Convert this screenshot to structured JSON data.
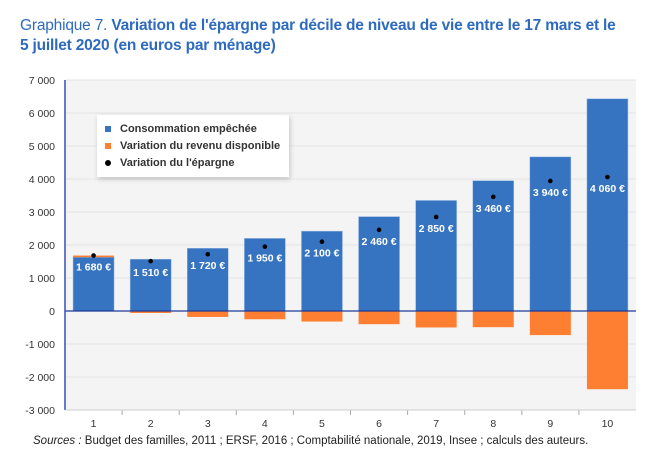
{
  "title": {
    "prefix": "Graphique 7.",
    "main": "Variation de l'épargne par décile de niveau de vie entre le 17 mars et le 5 juillet 2020 (en euros par ménage)"
  },
  "source": {
    "label": "Sources :",
    "text": "Budget des familles, 2011 ; ERSF, 2016 ; Comptabilité nationale, 2019, Insee ; calculs des auteurs."
  },
  "chart_data": {
    "type": "bar",
    "stacked": true,
    "categories": [
      "1",
      "2",
      "3",
      "4",
      "5",
      "6",
      "7",
      "8",
      "9",
      "10"
    ],
    "ylim": [
      -3000,
      7000
    ],
    "yticks": [
      -3000,
      -2000,
      -1000,
      0,
      1000,
      2000,
      3000,
      4000,
      5000,
      6000,
      7000
    ],
    "ytick_labels": [
      "-3 000",
      "-2 000",
      "-1 000",
      "0",
      "1 000",
      "2 000",
      "3 000",
      "4 000",
      "5 000",
      "6 000",
      "7 000"
    ],
    "grid": true,
    "legend_position": "top-left",
    "series": [
      {
        "name": "Consommation empêchée",
        "color": "#3674c2",
        "values": [
          1630,
          1570,
          1900,
          2200,
          2420,
          2860,
          3350,
          3950,
          4670,
          6430
        ]
      },
      {
        "name": "Variation du revenu disponible",
        "color": "#ff7f32",
        "values": [
          50,
          -60,
          -180,
          -250,
          -320,
          -400,
          -500,
          -490,
          -730,
          -2370
        ]
      },
      {
        "name": "Variation du l'épargne",
        "color": "#000000",
        "type": "scatter",
        "values": [
          1680,
          1510,
          1720,
          1950,
          2100,
          2460,
          2850,
          3460,
          3940,
          4060
        ]
      }
    ],
    "data_labels": [
      "1 680 €",
      "1 510 €",
      "1 720 €",
      "1 950 €",
      "2 100 €",
      "2 460 €",
      "2 850 €",
      "3 460 €",
      "3 940 €",
      "4 060 €"
    ]
  }
}
